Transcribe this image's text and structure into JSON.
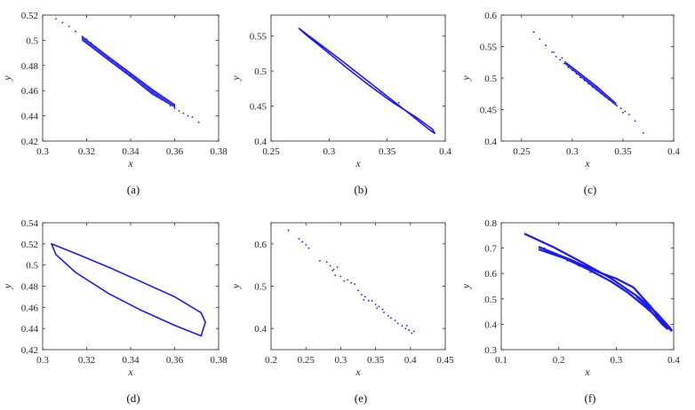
{
  "chart_data": [
    {
      "type": "scatter",
      "caption": "(a)",
      "xlabel": "x",
      "ylabel": "y",
      "xlim": [
        0.3,
        0.38
      ],
      "ylim": [
        0.42,
        0.52
      ],
      "xticks": [
        "0.3",
        "0.32",
        "0.34",
        "0.36",
        "0.38"
      ],
      "yticks": [
        "0.42",
        "0.44",
        "0.46",
        "0.48",
        "0.5",
        "0.52"
      ],
      "series": [
        {
          "kind": "points",
          "values": [
            [
              0.306,
              0.517
            ],
            [
              0.309,
              0.514
            ],
            [
              0.312,
              0.511
            ],
            [
              0.315,
              0.507
            ],
            [
              0.318,
              0.503
            ],
            [
              0.32,
              0.501
            ],
            [
              0.322,
              0.498
            ],
            [
              0.324,
              0.495
            ],
            [
              0.326,
              0.492
            ],
            [
              0.328,
              0.489
            ],
            [
              0.33,
              0.486
            ],
            [
              0.332,
              0.484
            ],
            [
              0.334,
              0.481
            ],
            [
              0.336,
              0.478
            ],
            [
              0.338,
              0.475
            ],
            [
              0.34,
              0.472
            ],
            [
              0.342,
              0.47
            ],
            [
              0.344,
              0.467
            ],
            [
              0.346,
              0.464
            ],
            [
              0.348,
              0.461
            ],
            [
              0.35,
              0.459
            ],
            [
              0.352,
              0.456
            ],
            [
              0.354,
              0.453
            ],
            [
              0.356,
              0.451
            ],
            [
              0.358,
              0.448
            ],
            [
              0.36,
              0.446
            ],
            [
              0.362,
              0.444
            ],
            [
              0.364,
              0.442
            ],
            [
              0.366,
              0.44
            ],
            [
              0.368,
              0.439
            ],
            [
              0.371,
              0.435
            ]
          ]
        },
        {
          "kind": "band",
          "values": [
            [
              0.318,
              0.5
            ],
            [
              0.33,
              0.484
            ],
            [
              0.34,
              0.471
            ],
            [
              0.35,
              0.457
            ],
            [
              0.36,
              0.447
            ],
            [
              0.36,
              0.449
            ],
            [
              0.35,
              0.461
            ],
            [
              0.34,
              0.474
            ],
            [
              0.33,
              0.487
            ],
            [
              0.318,
              0.503
            ]
          ]
        }
      ]
    },
    {
      "type": "line",
      "caption": "(b)",
      "xlabel": "x",
      "ylabel": "y",
      "xlim": [
        0.25,
        0.4
      ],
      "ylim": [
        0.4,
        0.58
      ],
      "xticks": [
        "0.25",
        "0.3",
        "0.35",
        "0.4"
      ],
      "yticks": [
        "0.4",
        "0.45",
        "0.5",
        "0.55"
      ],
      "series": [
        {
          "kind": "loop",
          "values": [
            [
              0.274,
              0.561
            ],
            [
              0.29,
              0.541
            ],
            [
              0.31,
              0.516
            ],
            [
              0.33,
              0.49
            ],
            [
              0.35,
              0.464
            ],
            [
              0.37,
              0.438
            ],
            [
              0.385,
              0.418
            ],
            [
              0.391,
              0.411
            ],
            [
              0.389,
              0.417
            ],
            [
              0.375,
              0.434
            ],
            [
              0.355,
              0.455
            ],
            [
              0.335,
              0.479
            ],
            [
              0.315,
              0.505
            ],
            [
              0.295,
              0.532
            ],
            [
              0.28,
              0.552
            ],
            [
              0.274,
              0.561
            ]
          ]
        },
        {
          "kind": "points",
          "values": [
            [
              0.3,
              0.528
            ],
            [
              0.32,
              0.502
            ],
            [
              0.345,
              0.47
            ],
            [
              0.36,
              0.455
            ]
          ]
        }
      ]
    },
    {
      "type": "scatter",
      "caption": "(c)",
      "xlabel": "x",
      "ylabel": "y",
      "xlim": [
        0.23,
        0.4
      ],
      "ylim": [
        0.4,
        0.6
      ],
      "xticks": [
        "0.25",
        "0.3",
        "0.35",
        "0.4"
      ],
      "yticks": [
        "0.4",
        "0.45",
        "0.5",
        "0.55",
        "0.6"
      ],
      "series": [
        {
          "kind": "points",
          "values": [
            [
              0.262,
              0.573
            ],
            [
              0.268,
              0.562
            ],
            [
              0.274,
              0.552
            ],
            [
              0.28,
              0.541
            ],
            [
              0.284,
              0.534
            ],
            [
              0.288,
              0.529
            ],
            [
              0.292,
              0.523
            ],
            [
              0.296,
              0.517
            ],
            [
              0.3,
              0.512
            ],
            [
              0.304,
              0.507
            ],
            [
              0.308,
              0.501
            ],
            [
              0.312,
              0.496
            ],
            [
              0.316,
              0.491
            ],
            [
              0.32,
              0.486
            ],
            [
              0.324,
              0.481
            ],
            [
              0.328,
              0.476
            ],
            [
              0.332,
              0.471
            ],
            [
              0.336,
              0.466
            ],
            [
              0.34,
              0.461
            ],
            [
              0.344,
              0.456
            ],
            [
              0.348,
              0.452
            ],
            [
              0.352,
              0.447
            ],
            [
              0.356,
              0.442
            ],
            [
              0.362,
              0.432
            ],
            [
              0.37,
              0.413
            ],
            [
              0.282,
              0.541
            ],
            [
              0.29,
              0.532
            ],
            [
              0.336,
              0.469
            ],
            [
              0.34,
              0.464
            ],
            [
              0.35,
              0.445
            ]
          ]
        },
        {
          "kind": "band",
          "values": [
            [
              0.293,
              0.523
            ],
            [
              0.31,
              0.5
            ],
            [
              0.325,
              0.48
            ],
            [
              0.343,
              0.457
            ],
            [
              0.343,
              0.46
            ],
            [
              0.325,
              0.486
            ],
            [
              0.31,
              0.505
            ],
            [
              0.293,
              0.526
            ]
          ]
        }
      ]
    },
    {
      "type": "line",
      "caption": "(d)",
      "xlabel": "x",
      "ylabel": "y",
      "xlim": [
        0.3,
        0.38
      ],
      "ylim": [
        0.42,
        0.54
      ],
      "xticks": [
        "0.3",
        "0.32",
        "0.34",
        "0.36",
        "0.38"
      ],
      "yticks": [
        "0.42",
        "0.44",
        "0.46",
        "0.48",
        "0.5",
        "0.52",
        "0.54"
      ],
      "series": [
        {
          "kind": "loop",
          "values": [
            [
              0.304,
              0.52
            ],
            [
              0.315,
              0.511
            ],
            [
              0.33,
              0.498
            ],
            [
              0.345,
              0.484
            ],
            [
              0.36,
              0.47
            ],
            [
              0.372,
              0.455
            ],
            [
              0.374,
              0.446
            ],
            [
              0.372,
              0.433
            ],
            [
              0.36,
              0.443
            ],
            [
              0.345,
              0.457
            ],
            [
              0.33,
              0.473
            ],
            [
              0.315,
              0.493
            ],
            [
              0.306,
              0.51
            ],
            [
              0.304,
              0.52
            ]
          ]
        }
      ]
    },
    {
      "type": "scatter",
      "caption": "(e)",
      "xlabel": "x",
      "ylabel": "y",
      "xlim": [
        0.2,
        0.45
      ],
      "ylim": [
        0.35,
        0.65
      ],
      "xticks": [
        "0.2",
        "0.25",
        "0.3",
        "0.35",
        "0.4",
        "0.45"
      ],
      "yticks": [
        "0.4",
        "0.5",
        "0.6"
      ],
      "series": [
        {
          "kind": "points",
          "values": [
            [
              0.225,
              0.632
            ],
            [
              0.24,
              0.612
            ],
            [
              0.245,
              0.605
            ],
            [
              0.25,
              0.598
            ],
            [
              0.254,
              0.59
            ],
            [
              0.28,
              0.557
            ],
            [
              0.285,
              0.548
            ],
            [
              0.288,
              0.537
            ],
            [
              0.29,
              0.54
            ],
            [
              0.295,
              0.545
            ],
            [
              0.3,
              0.523
            ],
            [
              0.305,
              0.512
            ],
            [
              0.31,
              0.515
            ],
            [
              0.315,
              0.508
            ],
            [
              0.32,
              0.505
            ],
            [
              0.325,
              0.49
            ],
            [
              0.33,
              0.48
            ],
            [
              0.335,
              0.475
            ],
            [
              0.34,
              0.466
            ],
            [
              0.345,
              0.465
            ],
            [
              0.35,
              0.457
            ],
            [
              0.355,
              0.452
            ],
            [
              0.36,
              0.445
            ],
            [
              0.362,
              0.438
            ],
            [
              0.368,
              0.43
            ],
            [
              0.372,
              0.425
            ],
            [
              0.378,
              0.419
            ],
            [
              0.382,
              0.412
            ],
            [
              0.388,
              0.406
            ],
            [
              0.393,
              0.4
            ],
            [
              0.398,
              0.396
            ],
            [
              0.402,
              0.389
            ],
            [
              0.405,
              0.393
            ],
            [
              0.27,
              0.56
            ],
            [
              0.292,
              0.526
            ],
            [
              0.333,
              0.468
            ],
            [
              0.352,
              0.448
            ],
            [
              0.395,
              0.407
            ]
          ]
        }
      ]
    },
    {
      "type": "scatter",
      "caption": "(f)",
      "xlabel": "x",
      "ylabel": "y",
      "xlim": [
        0.1,
        0.4
      ],
      "ylim": [
        0.3,
        0.8
      ],
      "xticks": [
        "0.1",
        "0.2",
        "0.3",
        "0.4"
      ],
      "yticks": [
        "0.3",
        "0.4",
        "0.5",
        "0.6",
        "0.7",
        "0.8"
      ],
      "series": [
        {
          "kind": "line",
          "values": [
            [
              0.14,
              0.757
            ],
            [
              0.19,
              0.705
            ],
            [
              0.24,
              0.645
            ],
            [
              0.29,
              0.582
            ],
            [
              0.34,
              0.505
            ],
            [
              0.37,
              0.445
            ],
            [
              0.39,
              0.395
            ],
            [
              0.397,
              0.376
            ]
          ]
        },
        {
          "kind": "line",
          "values": [
            [
              0.165,
              0.705
            ],
            [
              0.22,
              0.655
            ],
            [
              0.27,
              0.605
            ],
            [
              0.3,
              0.58
            ],
            [
              0.33,
              0.545
            ],
            [
              0.36,
              0.47
            ],
            [
              0.39,
              0.38
            ]
          ]
        },
        {
          "kind": "line",
          "values": [
            [
              0.165,
              0.695
            ],
            [
              0.21,
              0.66
            ],
            [
              0.25,
              0.618
            ],
            [
              0.29,
              0.57
            ],
            [
              0.32,
              0.525
            ],
            [
              0.35,
              0.47
            ],
            [
              0.38,
              0.41
            ],
            [
              0.397,
              0.372
            ]
          ]
        },
        {
          "kind": "line",
          "values": [
            [
              0.335,
              0.51
            ],
            [
              0.35,
              0.48
            ],
            [
              0.365,
              0.44
            ],
            [
              0.38,
              0.4
            ],
            [
              0.39,
              0.38
            ]
          ]
        },
        {
          "kind": "points",
          "values": [
            [
              0.175,
              0.7
            ],
            [
              0.195,
              0.673
            ],
            [
              0.215,
              0.65
            ],
            [
              0.235,
              0.63
            ],
            [
              0.255,
              0.605
            ],
            [
              0.275,
              0.59
            ],
            [
              0.31,
              0.55
            ],
            [
              0.345,
              0.49
            ],
            [
              0.375,
              0.43
            ],
            [
              0.395,
              0.38
            ]
          ]
        }
      ]
    }
  ]
}
